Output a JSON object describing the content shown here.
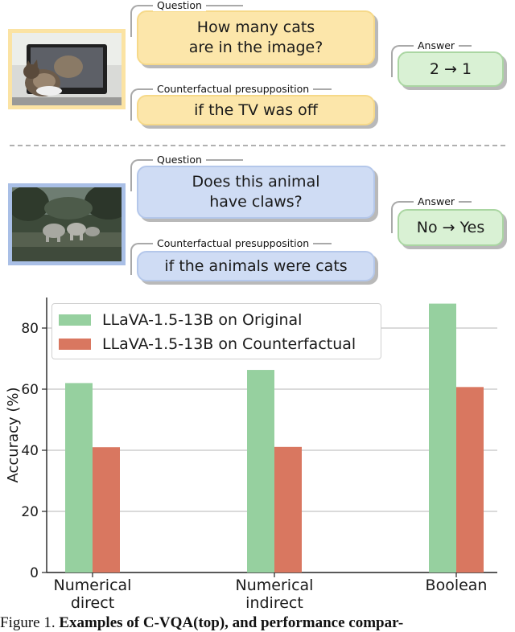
{
  "examples": [
    {
      "question_label": "Question",
      "question": "How many cats are in the image?",
      "question_lines": [
        "How many cats",
        "are in the image?"
      ],
      "answer_label": "Answer",
      "answer": "2 → 1",
      "presupposition_label": "Counterfactual presupposition",
      "presupposition": "if the TV was off",
      "image_colors": {
        "frame": "#fbe3a3"
      }
    },
    {
      "question_label": "Question",
      "question": "Does this animal have claws?",
      "question_lines": [
        "Does this animal",
        "have claws?"
      ],
      "answer_label": "Answer",
      "answer": "No → Yes",
      "presupposition_label": "Counterfactual presupposition",
      "presupposition": "if the animals were cats",
      "image_colors": {
        "frame": "#a9bfe6"
      }
    }
  ],
  "chart_data": {
    "type": "bar",
    "ylabel": "Accuracy (%)",
    "categories": [
      "Numerical direct",
      "Numerical indirect",
      "Boolean"
    ],
    "category_lines": [
      [
        "Numerical",
        "direct"
      ],
      [
        "Numerical",
        "indirect"
      ],
      [
        "Boolean"
      ]
    ],
    "series": [
      {
        "name": "LLaVA-1.5-13B on Original",
        "values": [
          62.0,
          66.3,
          88.0
        ],
        "color": "#96d09f"
      },
      {
        "name": "LLaVA-1.5-13B on Counterfactual",
        "values": [
          41.0,
          41.1,
          60.7
        ],
        "color": "#d97760"
      }
    ],
    "ylim": [
      0,
      90
    ],
    "yticks": [
      0,
      20,
      40,
      60,
      80
    ],
    "grid": "horizontal",
    "legend_position": "top-left"
  },
  "caption": {
    "prefix": "Figure 1.",
    "bold": "Examples of C-VQA(top), and performance compar-"
  }
}
